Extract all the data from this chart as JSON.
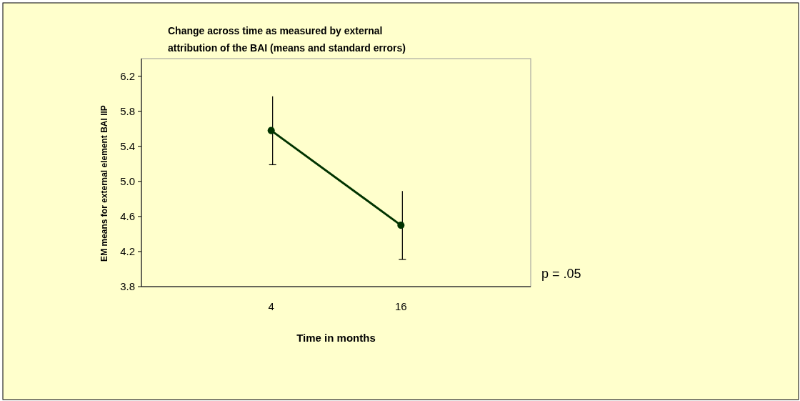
{
  "chart_data": {
    "type": "line",
    "title": "Change across time as measured by external attribution of the BAI (means and standard errors)",
    "xlabel": "Time in months",
    "ylabel": "EM means for external element BAI IIP",
    "categories": [
      "4",
      "16"
    ],
    "series": [
      {
        "color": "#003300",
        "values": [
          5.58,
          4.5
        ],
        "errors": [
          0.39,
          0.39
        ]
      }
    ],
    "ylim": [
      3.8,
      6.4
    ],
    "yticks": [
      {
        "value": 3.8,
        "label": "3.8"
      },
      {
        "value": 4.2,
        "label": "4.2"
      },
      {
        "value": 4.6,
        "label": "4.6"
      },
      {
        "value": 5,
        "label": "5.0"
      },
      {
        "value": 5.4,
        "label": "5.4"
      },
      {
        "value": 5.8,
        "label": "5.8"
      },
      {
        "value": 6.2,
        "label": "6.2"
      }
    ],
    "marker": "circle",
    "grid": false,
    "annotations": [
      "p = .05"
    ]
  }
}
